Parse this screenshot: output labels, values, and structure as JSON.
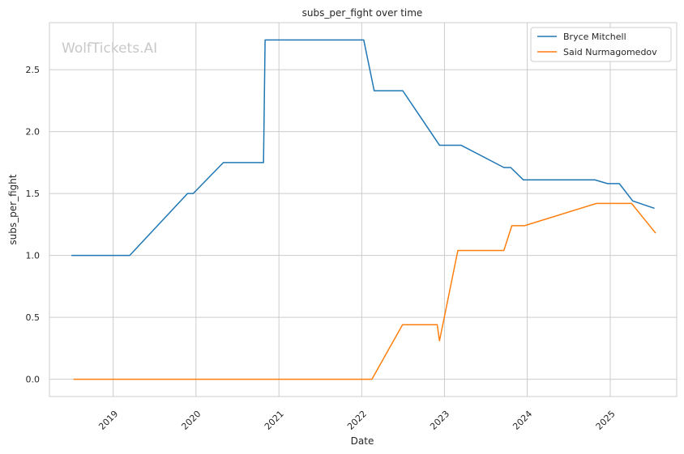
{
  "chart_data": {
    "type": "line",
    "title": "subs_per_fight over time",
    "xlabel": "Date",
    "ylabel": "subs_per_fight",
    "watermark": "WolfTickets.AI",
    "xlim": [
      "2018-03-26",
      "2025-10-21"
    ],
    "ylim": [
      -0.14,
      2.88
    ],
    "x_ticks": [
      {
        "date": "2019-01-01",
        "label": "2019"
      },
      {
        "date": "2020-01-01",
        "label": "2020"
      },
      {
        "date": "2021-01-01",
        "label": "2021"
      },
      {
        "date": "2022-01-01",
        "label": "2022"
      },
      {
        "date": "2023-01-01",
        "label": "2023"
      },
      {
        "date": "2024-01-01",
        "label": "2024"
      },
      {
        "date": "2025-01-01",
        "label": "2025"
      }
    ],
    "y_ticks": [
      {
        "value": 0.0,
        "label": "0.0"
      },
      {
        "value": 0.5,
        "label": "0.5"
      },
      {
        "value": 1.0,
        "label": "1.0"
      },
      {
        "value": 1.5,
        "label": "1.5"
      },
      {
        "value": 2.0,
        "label": "2.0"
      },
      {
        "value": 2.5,
        "label": "2.5"
      }
    ],
    "grid": true,
    "legend_position": "top-right",
    "series": [
      {
        "name": "Bryce Mitchell",
        "color": "#1f77b4",
        "points": [
          [
            "2018-07-01",
            1.0
          ],
          [
            "2019-03-15",
            1.0
          ],
          [
            "2019-11-25",
            1.5
          ],
          [
            "2019-12-20",
            1.5
          ],
          [
            "2020-05-01",
            1.75
          ],
          [
            "2020-10-25",
            1.75
          ],
          [
            "2020-11-01",
            2.74
          ],
          [
            "2022-01-10",
            2.74
          ],
          [
            "2022-02-25",
            2.33
          ],
          [
            "2022-07-01",
            2.33
          ],
          [
            "2022-12-10",
            1.89
          ],
          [
            "2023-03-15",
            1.89
          ],
          [
            "2023-09-20",
            1.71
          ],
          [
            "2023-10-20",
            1.71
          ],
          [
            "2023-12-15",
            1.61
          ],
          [
            "2024-10-25",
            1.61
          ],
          [
            "2024-12-20",
            1.58
          ],
          [
            "2025-02-10",
            1.58
          ],
          [
            "2025-04-10",
            1.44
          ],
          [
            "2025-07-15",
            1.38
          ]
        ]
      },
      {
        "name": "Said Nurmagomedov",
        "color": "#ff7f0e",
        "points": [
          [
            "2018-07-10",
            0.0
          ],
          [
            "2022-02-10",
            0.0
          ],
          [
            "2022-02-15",
            0.0
          ],
          [
            "2022-06-30",
            0.44
          ],
          [
            "2022-11-30",
            0.44
          ],
          [
            "2022-12-10",
            0.31
          ],
          [
            "2023-03-01",
            1.04
          ],
          [
            "2023-09-20",
            1.04
          ],
          [
            "2023-10-25",
            1.24
          ],
          [
            "2023-12-20",
            1.24
          ],
          [
            "2024-11-01",
            1.42
          ],
          [
            "2025-04-05",
            1.42
          ],
          [
            "2025-07-20",
            1.18
          ]
        ]
      }
    ]
  }
}
